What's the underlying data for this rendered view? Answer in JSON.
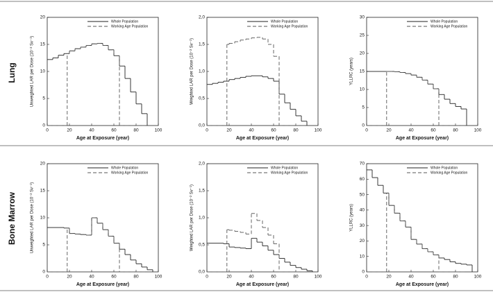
{
  "row_labels": [
    "Lung",
    "Bone Marrow"
  ],
  "chart_data": [
    {
      "type": "step",
      "xlabel": "Age at Exposure (year)",
      "ylabel": "Unweighted LAR per Dose (10⁻² Sv⁻¹)",
      "xlim": [
        0,
        100
      ],
      "xticks": [
        0,
        20,
        40,
        60,
        80,
        100
      ],
      "ylim": [
        0,
        20
      ],
      "yticks": [
        0,
        5,
        10,
        15,
        20
      ],
      "legend": "upper right",
      "series": [
        {
          "name": "Whole Population",
          "color": "#222222",
          "linestyle": "solid",
          "bins": [
            0,
            5,
            10,
            15,
            20,
            25,
            30,
            35,
            40,
            45,
            50,
            55,
            60,
            65,
            70,
            75,
            80,
            85,
            90
          ],
          "values": [
            12.2,
            12.5,
            13,
            13.3,
            13.8,
            14.2,
            14.5,
            14.8,
            15.1,
            15.2,
            14.8,
            14,
            12.9,
            11,
            8.7,
            6.2,
            4,
            2.2
          ]
        },
        {
          "name": "Working Age Population",
          "color": "#555555",
          "linestyle": "dashed",
          "bins": [
            0,
            18,
            20,
            25,
            30,
            35,
            40,
            45,
            50,
            55,
            60,
            65,
            90
          ],
          "values": [
            0,
            13.3,
            13.8,
            14.2,
            14.5,
            14.8,
            15.1,
            15.2,
            14.8,
            14,
            12.9,
            0
          ]
        }
      ]
    },
    {
      "type": "step",
      "xlabel": "Age at Exposure (year)",
      "ylabel": "Weighted LAR per Dose (10⁻² Sv⁻¹)",
      "xlim": [
        0,
        100
      ],
      "xticks": [
        0,
        20,
        40,
        60,
        80,
        100
      ],
      "ylim": [
        0,
        2
      ],
      "yticks": [
        {
          "value": 0,
          "label": "0,0"
        },
        {
          "value": 0.5,
          "label": "0,5"
        },
        {
          "value": 1,
          "label": "1,0"
        },
        {
          "value": 1.5,
          "label": "1,5"
        },
        {
          "value": 2,
          "label": "2,0"
        }
      ],
      "legend": "upper right",
      "series": [
        {
          "name": "Whole Population",
          "color": "#222222",
          "linestyle": "solid",
          "bins": [
            0,
            5,
            10,
            15,
            20,
            25,
            30,
            35,
            40,
            45,
            50,
            55,
            60,
            65,
            70,
            75,
            80,
            85,
            90
          ],
          "values": [
            0.76,
            0.78,
            0.8,
            0.82,
            0.85,
            0.87,
            0.89,
            0.91,
            0.92,
            0.92,
            0.9,
            0.87,
            0.82,
            0.58,
            0.42,
            0.3,
            0.18,
            0.08
          ]
        },
        {
          "name": "Working Age Population",
          "color": "#555555",
          "linestyle": "dashed",
          "bins": [
            0,
            18,
            20,
            25,
            30,
            35,
            40,
            45,
            50,
            55,
            60,
            65,
            90
          ],
          "values": [
            0,
            1.5,
            1.52,
            1.55,
            1.58,
            1.6,
            1.62,
            1.63,
            1.6,
            1.5,
            1.28,
            0
          ]
        }
      ]
    },
    {
      "type": "step",
      "xlabel": "Age at Exposure (year)",
      "ylabel": "YLLRC (years)",
      "xlim": [
        0,
        100
      ],
      "xticks": [
        0,
        20,
        40,
        60,
        80,
        100
      ],
      "ylim": [
        0,
        30
      ],
      "yticks": [
        0,
        5,
        10,
        15,
        20,
        25,
        30
      ],
      "legend": "upper right",
      "series": [
        {
          "name": "Whole Population",
          "color": "#222222",
          "linestyle": "solid",
          "bins": [
            0,
            5,
            10,
            15,
            20,
            25,
            30,
            35,
            40,
            45,
            50,
            55,
            60,
            65,
            70,
            75,
            80,
            85,
            90
          ],
          "values": [
            15,
            15,
            15,
            15,
            15,
            14.9,
            14.7,
            14.4,
            14,
            13.4,
            12.6,
            11.5,
            10.2,
            8.6,
            7.3,
            6.1,
            5.3,
            4.6
          ]
        },
        {
          "name": "Working Age Population",
          "color": "#555555",
          "linestyle": "dashed",
          "bins": [
            0,
            18,
            20,
            25,
            30,
            35,
            40,
            45,
            50,
            55,
            60,
            65,
            90
          ],
          "values": [
            0,
            15,
            15,
            14.9,
            14.7,
            14.4,
            14,
            13.4,
            12.6,
            11.5,
            10.2,
            0
          ]
        }
      ]
    },
    {
      "type": "step",
      "xlabel": "Age at Exposure (year)",
      "ylabel": "Unweighted LAR per Dose (10⁻² Sv⁻¹)",
      "xlim": [
        0,
        100
      ],
      "xticks": [
        0,
        20,
        40,
        60,
        80,
        100
      ],
      "ylim": [
        0,
        20
      ],
      "yticks": [
        0,
        5,
        10,
        15,
        20
      ],
      "legend": "upper right",
      "series": [
        {
          "name": "Whole Population",
          "color": "#222222",
          "linestyle": "solid",
          "bins": [
            0,
            5,
            10,
            15,
            20,
            25,
            30,
            35,
            40,
            45,
            50,
            55,
            60,
            65,
            70,
            75,
            80,
            85,
            90,
            95
          ],
          "values": [
            8.2,
            8.2,
            8.2,
            8.1,
            7.1,
            7,
            6.9,
            6.8,
            10,
            9,
            7.8,
            6.6,
            5.3,
            4.2,
            3.2,
            2.2,
            1.5,
            0.9,
            0.4
          ]
        },
        {
          "name": "Working Age Population",
          "color": "#555555",
          "linestyle": "dashed",
          "bins": [
            0,
            18,
            20,
            25,
            30,
            35,
            40,
            45,
            50,
            55,
            60,
            65,
            90
          ],
          "values": [
            0,
            8.1,
            7.1,
            7,
            6.9,
            6.8,
            10,
            9,
            7.8,
            6.6,
            5.3,
            0
          ]
        }
      ]
    },
    {
      "type": "step",
      "xlabel": "Age at Exposure (year)",
      "ylabel": "Weighted LAR per Dose (10⁻² Sv⁻¹)",
      "xlim": [
        0,
        100
      ],
      "xticks": [
        0,
        20,
        40,
        60,
        80,
        100
      ],
      "ylim": [
        0,
        2
      ],
      "yticks": [
        {
          "value": 0,
          "label": "0,0"
        },
        {
          "value": 0.5,
          "label": "0,5"
        },
        {
          "value": 1,
          "label": "1,0"
        },
        {
          "value": 1.5,
          "label": "1,5"
        },
        {
          "value": 2,
          "label": "2,0"
        }
      ],
      "legend": "upper right",
      "series": [
        {
          "name": "Whole Population",
          "color": "#222222",
          "linestyle": "solid",
          "bins": [
            0,
            5,
            10,
            15,
            20,
            25,
            30,
            35,
            40,
            45,
            50,
            55,
            60,
            65,
            70,
            75,
            80,
            85,
            90,
            95
          ],
          "values": [
            0.53,
            0.53,
            0.53,
            0.52,
            0.46,
            0.45,
            0.44,
            0.43,
            0.62,
            0.55,
            0.48,
            0.4,
            0.32,
            0.25,
            0.18,
            0.12,
            0.08,
            0.05,
            0.02
          ]
        },
        {
          "name": "Working Age Population",
          "color": "#555555",
          "linestyle": "dashed",
          "bins": [
            0,
            18,
            20,
            25,
            30,
            35,
            40,
            45,
            50,
            55,
            60,
            65,
            90
          ],
          "values": [
            0,
            0.78,
            0.77,
            0.75,
            0.73,
            0.7,
            1.08,
            0.95,
            0.82,
            0.68,
            0.52,
            0
          ]
        }
      ]
    },
    {
      "type": "step",
      "xlabel": "Age at Exposure (year)",
      "ylabel": "YLLRC (years)",
      "xlim": [
        0,
        100
      ],
      "xticks": [
        0,
        20,
        40,
        60,
        80,
        100
      ],
      "ylim": [
        0,
        70
      ],
      "yticks": [
        0,
        10,
        20,
        30,
        40,
        50,
        60,
        70
      ],
      "legend": "upper right",
      "series": [
        {
          "name": "Whole Population",
          "color": "#222222",
          "linestyle": "solid",
          "bins": [
            0,
            5,
            10,
            15,
            20,
            25,
            30,
            35,
            40,
            45,
            50,
            55,
            60,
            65,
            70,
            75,
            80,
            85,
            90,
            95
          ],
          "values": [
            66,
            61,
            56,
            51,
            43,
            38,
            33,
            29,
            21,
            18,
            15,
            13,
            11,
            9,
            8,
            6.5,
            5.5,
            5,
            4.5
          ]
        },
        {
          "name": "Working Age Population",
          "color": "#555555",
          "linestyle": "dashed",
          "bins": [
            0,
            18,
            20,
            25,
            30,
            35,
            40,
            45,
            50,
            55,
            60,
            65,
            90
          ],
          "values": [
            0,
            51,
            43,
            38,
            33,
            29,
            21,
            18,
            15,
            13,
            11,
            0
          ]
        }
      ]
    }
  ]
}
